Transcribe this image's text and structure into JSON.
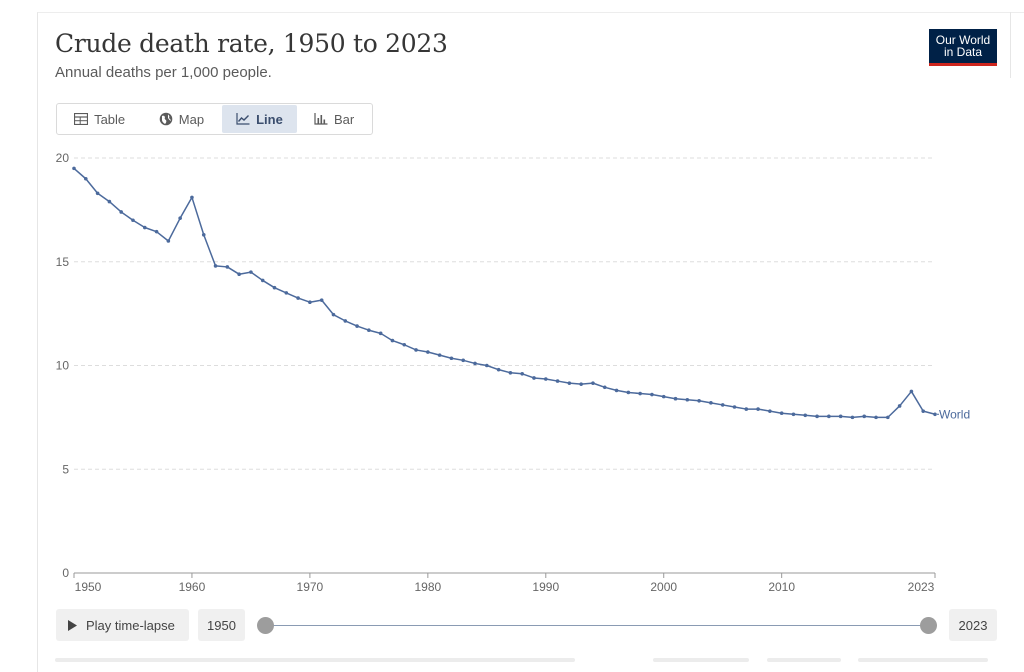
{
  "header": {
    "title": "Crude death rate, 1950 to 2023",
    "subtitle": "Annual deaths per 1,000 people.",
    "logo_line1": "Our World",
    "logo_line2": "in Data"
  },
  "tabs": [
    {
      "label": "Table",
      "icon": "table-icon",
      "active": false
    },
    {
      "label": "Map",
      "icon": "globe-icon",
      "active": false
    },
    {
      "label": "Line",
      "icon": "line-chart-icon",
      "active": true
    },
    {
      "label": "Bar",
      "icon": "bar-chart-icon",
      "active": false
    }
  ],
  "timeline": {
    "play_label": "Play time-lapse",
    "start_year": "1950",
    "end_year": "2023"
  },
  "colors": {
    "series": "#4c6a9c",
    "grid": "#dddddd",
    "accent": "#002147",
    "logo_underline": "#ce261e"
  },
  "chart_data": {
    "type": "line",
    "title": "Crude death rate, 1950 to 2023",
    "subtitle": "Annual deaths per 1,000 people.",
    "xlabel": "",
    "ylabel": "",
    "xlim": [
      1950,
      2023
    ],
    "ylim": [
      0,
      20
    ],
    "y_ticks": [
      0,
      5,
      10,
      15,
      20
    ],
    "x_ticks": [
      1950,
      1960,
      1970,
      1980,
      1990,
      2000,
      2010,
      2023
    ],
    "grid": "horizontal-dashed",
    "series": [
      {
        "name": "World",
        "x": [
          1950,
          1951,
          1952,
          1953,
          1954,
          1955,
          1956,
          1957,
          1958,
          1959,
          1960,
          1961,
          1962,
          1963,
          1964,
          1965,
          1966,
          1967,
          1968,
          1969,
          1970,
          1971,
          1972,
          1973,
          1974,
          1975,
          1976,
          1977,
          1978,
          1979,
          1980,
          1981,
          1982,
          1983,
          1984,
          1985,
          1986,
          1987,
          1988,
          1989,
          1990,
          1991,
          1992,
          1993,
          1994,
          1995,
          1996,
          1997,
          1998,
          1999,
          2000,
          2001,
          2002,
          2003,
          2004,
          2005,
          2006,
          2007,
          2008,
          2009,
          2010,
          2011,
          2012,
          2013,
          2014,
          2015,
          2016,
          2017,
          2018,
          2019,
          2020,
          2021,
          2022,
          2023
        ],
        "values": [
          19.5,
          19.0,
          18.3,
          17.9,
          17.4,
          17.0,
          16.65,
          16.45,
          16.0,
          17.1,
          18.1,
          16.3,
          14.8,
          14.75,
          14.4,
          14.5,
          14.1,
          13.75,
          13.5,
          13.25,
          13.05,
          13.15,
          12.45,
          12.15,
          11.9,
          11.7,
          11.55,
          11.2,
          11.0,
          10.75,
          10.65,
          10.5,
          10.35,
          10.25,
          10.1,
          10.0,
          9.8,
          9.65,
          9.6,
          9.4,
          9.35,
          9.25,
          9.15,
          9.1,
          9.15,
          8.95,
          8.8,
          8.7,
          8.65,
          8.6,
          8.5,
          8.4,
          8.35,
          8.3,
          8.2,
          8.1,
          8.0,
          7.9,
          7.9,
          7.8,
          7.7,
          7.65,
          7.6,
          7.55,
          7.55,
          7.55,
          7.5,
          7.55,
          7.5,
          7.5,
          8.05,
          8.75,
          7.8,
          7.65
        ]
      }
    ]
  }
}
